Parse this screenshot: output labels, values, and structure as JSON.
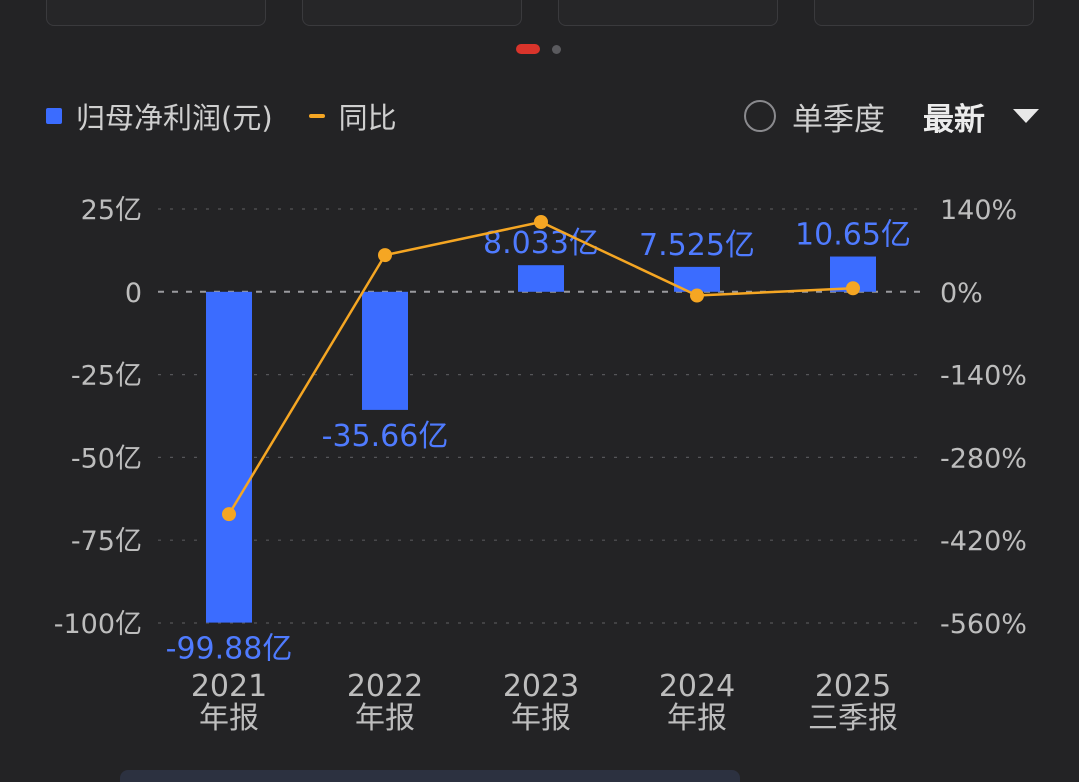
{
  "legend": {
    "bar_label": "归母净利润(元)",
    "line_label": "同比"
  },
  "controls": {
    "single_quarter_label": "单季度",
    "latest_label": "最新"
  },
  "colors": {
    "bar": "#3b6cff",
    "line": "#f5a623",
    "active_dot": "#d9342b",
    "grid": "#555558",
    "axis_text": "#bdbdbd",
    "value_label": "#4f7bff"
  },
  "icons": {
    "radio": "radio-unchecked-icon",
    "dropdown": "triangle-down-icon"
  },
  "chart_data": {
    "type": "bar",
    "categories": [
      [
        "2021",
        "年报"
      ],
      [
        "2022",
        "年报"
      ],
      [
        "2023",
        "年报"
      ],
      [
        "2024",
        "年报"
      ],
      [
        "2025",
        "三季报"
      ]
    ],
    "series": [
      {
        "name": "归母净利润(元)",
        "type": "bar",
        "axis": "left",
        "values": [
          -99.88,
          -35.66,
          8.033,
          7.525,
          10.65
        ],
        "value_labels": [
          "-99.88亿",
          "-35.66亿",
          "8.033亿",
          "7.525亿",
          "10.65亿"
        ]
      },
      {
        "name": "同比",
        "type": "line",
        "axis": "right",
        "values": [
          -376,
          62,
          118,
          -6.3,
          6
        ]
      }
    ],
    "y_left": {
      "ticks": [
        25,
        0,
        -25,
        -50,
        -75,
        -100
      ],
      "tick_labels": [
        "25亿",
        "0",
        "-25亿",
        "-50亿",
        "-75亿",
        "-100亿"
      ],
      "range": [
        -100,
        25
      ]
    },
    "y_right": {
      "ticks": [
        140,
        0,
        -140,
        -280,
        -420,
        -560
      ],
      "tick_labels": [
        "140%",
        "0%",
        "-140%",
        "-280%",
        "-420%",
        "-560%"
      ],
      "range": [
        -560,
        140
      ]
    },
    "grid": true,
    "zero_line": "dashed"
  }
}
